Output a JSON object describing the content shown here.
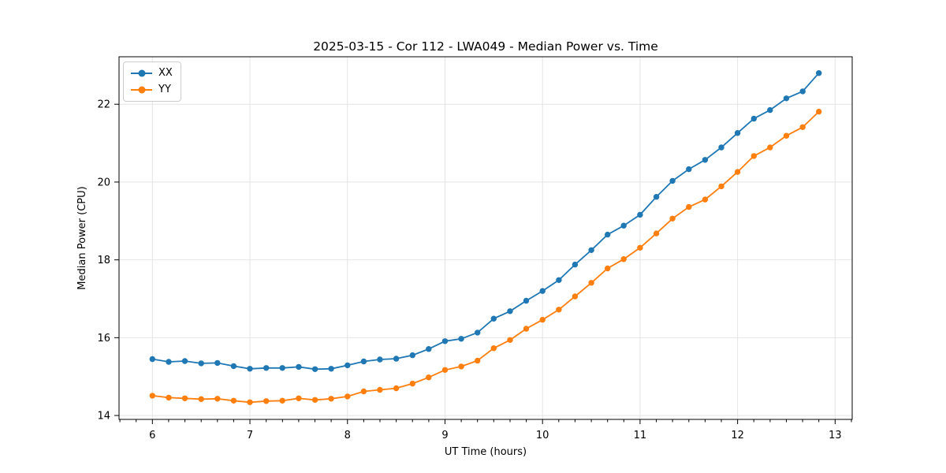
{
  "chart_data": {
    "type": "line",
    "title": "2025-03-15 - Cor 112 - LWA049 - Median Power vs. Time",
    "xlabel": "UT Time (hours)",
    "ylabel": "Median Power (CPU)",
    "xlim": [
      5.658,
      13.175
    ],
    "ylim": [
      13.9,
      23.22
    ],
    "x_ticks": [
      6,
      7,
      8,
      9,
      10,
      11,
      12,
      13
    ],
    "y_ticks": [
      14,
      16,
      18,
      20,
      22
    ],
    "x_minor_tick_step": 0.1667,
    "grid": true,
    "legend_position": "upper left",
    "x": [
      6.0,
      6.167,
      6.333,
      6.5,
      6.667,
      6.833,
      7.0,
      7.167,
      7.333,
      7.5,
      7.667,
      7.833,
      8.0,
      8.167,
      8.333,
      8.5,
      8.667,
      8.833,
      9.0,
      9.167,
      9.333,
      9.5,
      9.667,
      9.833,
      10.0,
      10.167,
      10.333,
      10.5,
      10.667,
      10.833,
      11.0,
      11.167,
      11.333,
      11.5,
      11.667,
      11.833,
      12.0,
      12.167,
      12.333,
      12.5,
      12.667,
      12.833
    ],
    "series": [
      {
        "name": "XX",
        "color": "#1f77b4",
        "marker": "circle",
        "values": [
          15.45,
          15.38,
          15.4,
          15.34,
          15.35,
          15.27,
          15.2,
          15.22,
          15.22,
          15.25,
          15.19,
          15.2,
          15.29,
          15.39,
          15.44,
          15.46,
          15.55,
          15.71,
          15.91,
          15.97,
          16.13,
          16.49,
          16.68,
          16.95,
          17.2,
          17.48,
          17.88,
          18.25,
          18.65,
          18.88,
          19.16,
          19.62,
          20.03,
          20.33,
          20.57,
          20.89,
          21.26,
          21.63,
          21.85,
          22.15,
          22.33,
          22.8
        ]
      },
      {
        "name": "YY",
        "color": "#ff7f0e",
        "marker": "circle",
        "values": [
          14.51,
          14.46,
          14.44,
          14.42,
          14.43,
          14.38,
          14.34,
          14.37,
          14.38,
          14.44,
          14.4,
          14.43,
          14.49,
          14.62,
          14.66,
          14.7,
          14.82,
          14.98,
          15.17,
          15.26,
          15.41,
          15.73,
          15.94,
          16.23,
          16.46,
          16.72,
          17.06,
          17.41,
          17.78,
          18.02,
          18.31,
          18.68,
          19.06,
          19.36,
          19.55,
          19.89,
          20.26,
          20.67,
          20.89,
          21.19,
          21.41,
          21.81
        ]
      }
    ]
  }
}
